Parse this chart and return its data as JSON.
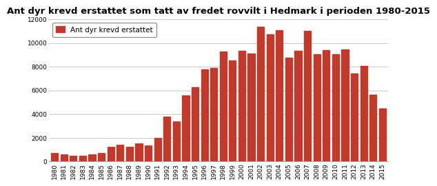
{
  "title": "Ant dyr krevd erstattet som tatt av fredet rovvilt i Hedmark i perioden 1980-2015",
  "legend_label": "Ant dyr krevd erstattet",
  "bar_color": "#c0392b",
  "years": [
    1980,
    1981,
    1982,
    1983,
    1984,
    1985,
    1986,
    1987,
    1988,
    1989,
    1990,
    1991,
    1992,
    1993,
    1994,
    1995,
    1996,
    1997,
    1998,
    1999,
    2000,
    2001,
    2002,
    2003,
    2004,
    2005,
    2006,
    2007,
    2008,
    2009,
    2010,
    2011,
    2012,
    2013,
    2014,
    2015
  ],
  "values": [
    700,
    600,
    450,
    450,
    600,
    700,
    1200,
    1400,
    1200,
    1500,
    1350,
    2000,
    3800,
    3350,
    5600,
    6250,
    7750,
    7900,
    9250,
    8500,
    9350,
    9100,
    11350,
    10750,
    11100,
    8750,
    9350,
    11000,
    9050,
    9400,
    9050,
    9450,
    7450,
    8050,
    5650,
    4450
  ],
  "ylim": [
    0,
    12000
  ],
  "yticks": [
    0,
    2000,
    4000,
    6000,
    8000,
    10000,
    12000
  ],
  "grid_color": "#cccccc",
  "background_color": "#ffffff",
  "title_fontsize": 9.5,
  "tick_fontsize": 6.5,
  "legend_fontsize": 7.5
}
